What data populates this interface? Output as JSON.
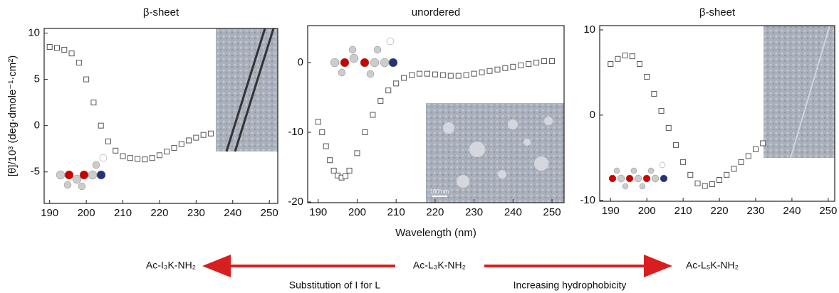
{
  "chart_data": [
    {
      "type": "scatter",
      "title": "β-sheet",
      "ylabel": "[θ]/10³ (deg·dmole⁻¹·cm²)",
      "x": [
        190,
        192,
        194,
        196,
        198,
        200,
        202,
        204,
        206,
        208,
        210,
        212,
        214,
        216,
        218,
        220,
        222,
        224,
        226,
        228,
        230,
        232,
        234
      ],
      "values": [
        8.5,
        8.4,
        8.2,
        7.8,
        6.8,
        5,
        2.5,
        0,
        -1.7,
        -2.7,
        -3.3,
        -3.5,
        -3.6,
        -3.65,
        -3.5,
        -3.2,
        -2.8,
        -2.4,
        -2.0,
        -1.6,
        -1.3,
        -1.0,
        -0.85
      ],
      "xlim": [
        188.5,
        252.3
      ],
      "ylim": [
        -8.4,
        10.5
      ],
      "xticks": [
        190,
        200,
        210,
        220,
        230,
        240,
        250
      ],
      "yticks": [
        -5,
        0,
        5,
        10
      ]
    },
    {
      "type": "scatter",
      "title": "unordered",
      "xlabel": "Wavelength (nm)",
      "inset_label": "100 nm",
      "x": [
        190,
        191,
        192,
        193,
        194,
        195,
        196,
        197,
        198,
        200,
        202,
        204,
        206,
        208,
        210,
        212,
        214,
        216,
        218,
        220,
        222,
        224,
        226,
        228,
        230,
        232,
        234,
        236,
        238,
        240,
        242,
        244,
        246,
        248,
        250
      ],
      "values": [
        -8.5,
        -10,
        -12,
        -14,
        -15.5,
        -16.2,
        -16.5,
        -16.3,
        -15.5,
        -13,
        -10,
        -7.5,
        -5.5,
        -4,
        -3,
        -2.2,
        -1.8,
        -1.6,
        -1.6,
        -1.7,
        -1.8,
        -1.9,
        -1.9,
        -1.8,
        -1.6,
        -1.4,
        -1.2,
        -1,
        -0.8,
        -0.6,
        -0.4,
        -0.2,
        0,
        0.2,
        0.2
      ],
      "xlim": [
        187.3,
        253.1
      ],
      "ylim": [
        -20.1,
        5.3
      ],
      "xticks": [
        190,
        200,
        210,
        220,
        230,
        240,
        250
      ],
      "yticks": [
        -20,
        -10,
        0
      ]
    },
    {
      "type": "scatter",
      "title": "β-sheet",
      "x": [
        190,
        192,
        194,
        196,
        198,
        200,
        202,
        204,
        206,
        208,
        210,
        212,
        214,
        216,
        218,
        220,
        222,
        224,
        226,
        228,
        230,
        232
      ],
      "values": [
        6,
        6.6,
        7,
        6.9,
        6,
        4.5,
        2.5,
        0.5,
        -1.5,
        -3.5,
        -5.5,
        -7,
        -8,
        -8.3,
        -8.1,
        -7.6,
        -7,
        -6.3,
        -5.5,
        -4.8,
        -4,
        -3.3
      ],
      "xlim": [
        187,
        251.8
      ],
      "ylim": [
        -10.1,
        10.5
      ],
      "xticks": [
        190,
        200,
        210,
        220,
        230,
        240,
        250
      ],
      "yticks": [
        -10,
        0,
        10
      ]
    }
  ],
  "scheme": {
    "left": "Ac-I₃K-NH₂",
    "center": "Ac-L₃K-NH₂",
    "right": "Ac-L₅K-NH₂",
    "left_caption": "Substitution of I for L",
    "right_caption": "Increasing hydrophobicity"
  }
}
